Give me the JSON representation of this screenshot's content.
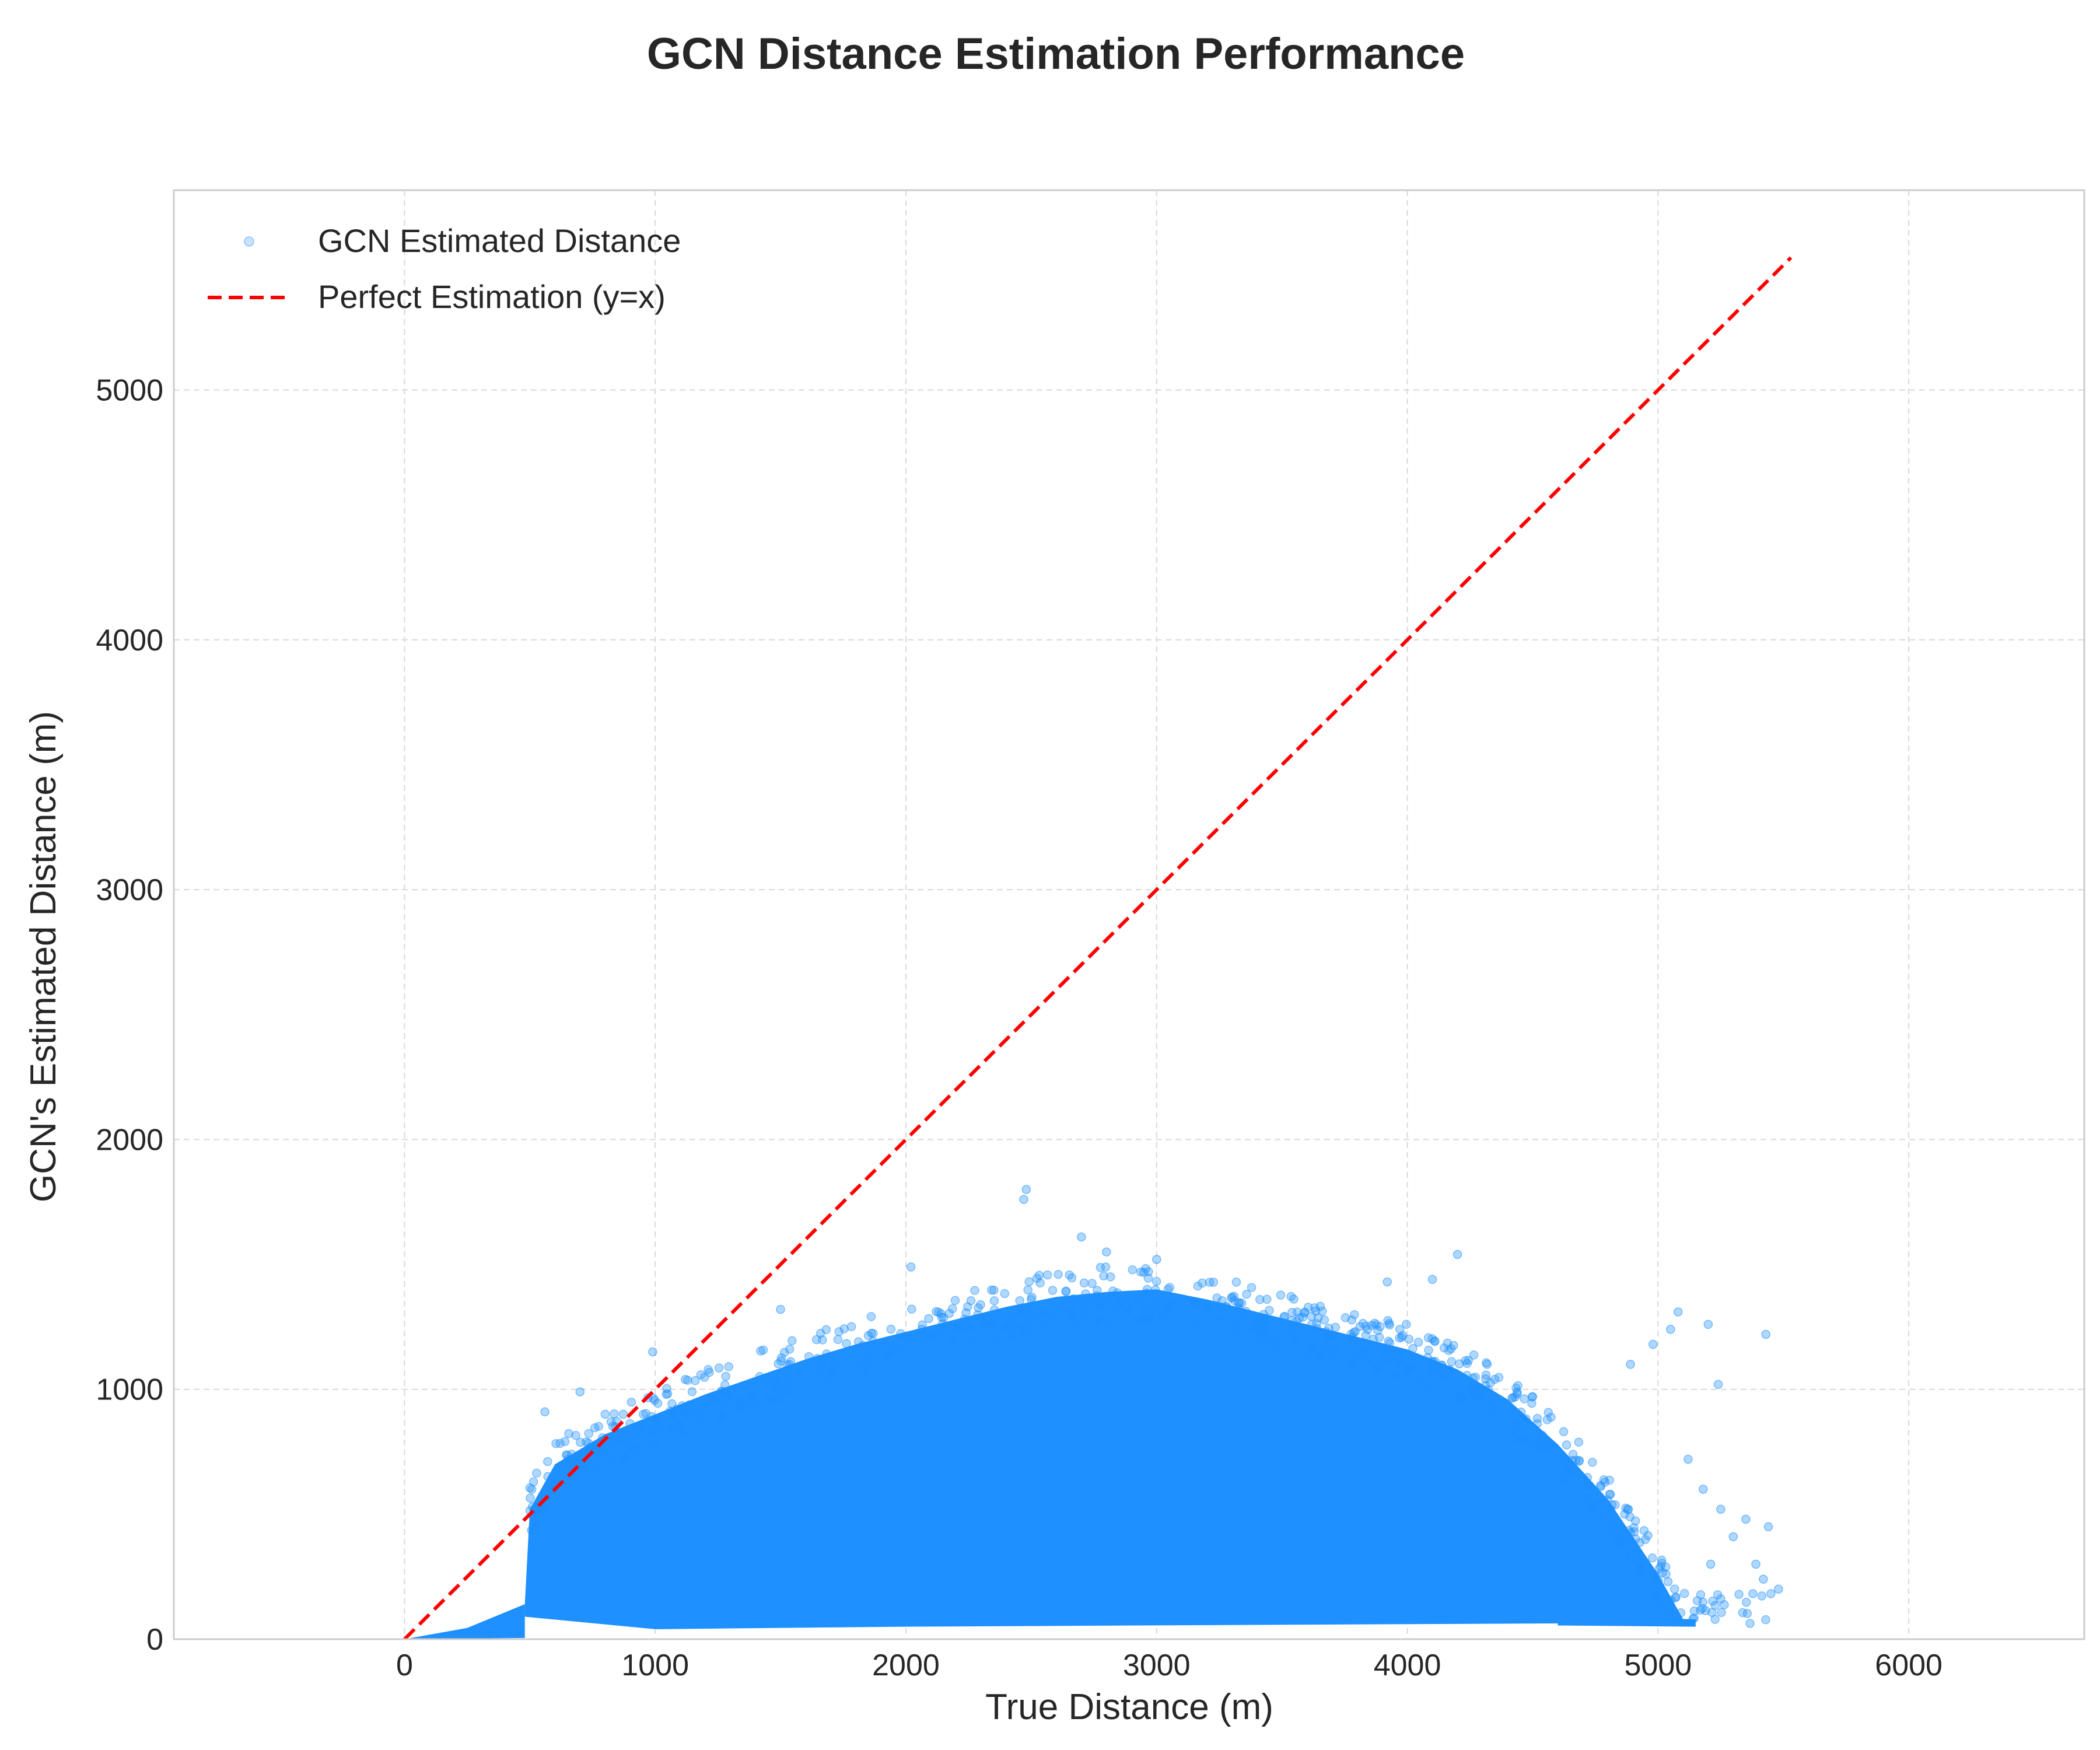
{
  "chart_data": {
    "type": "scatter",
    "title": "GCN Distance Estimation Performance",
    "xlabel": "True Distance (m)",
    "ylabel": "GCN's Estimated Distance (m)",
    "xlim": [
      -920,
      6700
    ],
    "ylim": [
      0,
      5800
    ],
    "xticks": [
      0,
      1000,
      2000,
      3000,
      4000,
      5000,
      6000
    ],
    "yticks": [
      0,
      1000,
      2000,
      3000,
      4000,
      5000
    ],
    "xtick_labels": [
      "0",
      "1000",
      "2000",
      "3000",
      "4000",
      "5000",
      "6000"
    ],
    "ytick_labels": [
      "0",
      "1000",
      "2000",
      "3000",
      "4000",
      "5000"
    ],
    "grid": true,
    "legend_position": "top-left",
    "series": [
      {
        "name": "GCN Estimated Distance",
        "kind": "scatter",
        "color": "#1e90ff",
        "upper_envelope": {
          "x": [
            480,
            500,
            600,
            700,
            800,
            1000,
            1200,
            1400,
            1600,
            1800,
            2000,
            2200,
            2400,
            2600,
            2800,
            3000,
            3200,
            3400,
            3600,
            3800,
            4000,
            4200,
            4400,
            4600,
            4800,
            5000,
            5100
          ],
          "y": [
            140,
            520,
            700,
            760,
            820,
            900,
            980,
            1050,
            1120,
            1180,
            1230,
            1280,
            1330,
            1370,
            1390,
            1400,
            1360,
            1310,
            1260,
            1210,
            1160,
            1080,
            960,
            780,
            560,
            260,
            80
          ]
        },
        "lower_envelope": {
          "x": [
            0,
            250,
            480,
            1000,
            2000,
            3000,
            4000,
            5000,
            5150
          ],
          "y": [
            0,
            40,
            90,
            40,
            50,
            55,
            60,
            65,
            60
          ]
        },
        "highlighted_points": [
          {
            "x": 2480,
            "y": 1800
          },
          {
            "x": 2470,
            "y": 1760
          },
          {
            "x": 2700,
            "y": 1610
          },
          {
            "x": 2800,
            "y": 1550
          },
          {
            "x": 3000,
            "y": 1520
          },
          {
            "x": 4200,
            "y": 1540
          },
          {
            "x": 2020,
            "y": 1490
          },
          {
            "x": 3920,
            "y": 1430
          },
          {
            "x": 4100,
            "y": 1440
          },
          {
            "x": 1500,
            "y": 1320
          },
          {
            "x": 990,
            "y": 1150
          },
          {
            "x": 5080,
            "y": 1310
          },
          {
            "x": 5050,
            "y": 1240
          },
          {
            "x": 5200,
            "y": 1260
          },
          {
            "x": 5430,
            "y": 1220
          },
          {
            "x": 4980,
            "y": 1180
          },
          {
            "x": 4890,
            "y": 1100
          },
          {
            "x": 5240,
            "y": 1020
          },
          {
            "x": 5350,
            "y": 480
          },
          {
            "x": 5440,
            "y": 450
          },
          {
            "x": 5390,
            "y": 300
          },
          {
            "x": 5300,
            "y": 410
          },
          {
            "x": 5420,
            "y": 240
          },
          {
            "x": 5480,
            "y": 200
          },
          {
            "x": 5180,
            "y": 600
          },
          {
            "x": 5250,
            "y": 520
          },
          {
            "x": 5120,
            "y": 720
          },
          {
            "x": 5210,
            "y": 300
          },
          {
            "x": 560,
            "y": 910
          },
          {
            "x": 700,
            "y": 990
          }
        ]
      },
      {
        "name": "Perfect Estimation (y=x)",
        "kind": "line",
        "style": "dashed",
        "color": "#ff0000",
        "x": [
          0,
          5530
        ],
        "y": [
          0,
          5530
        ]
      }
    ]
  }
}
